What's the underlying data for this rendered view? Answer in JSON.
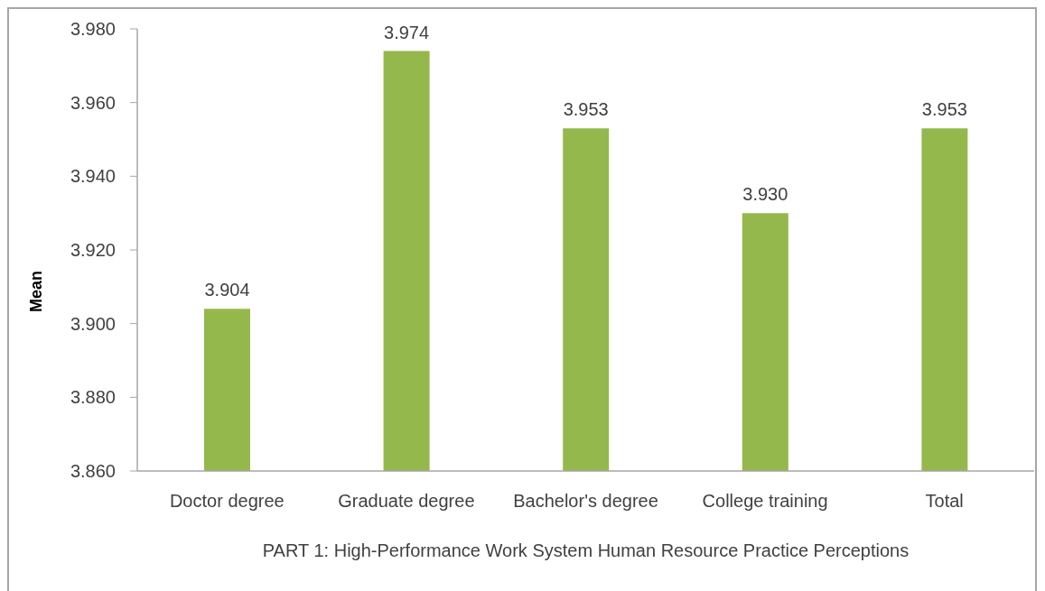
{
  "chart_data": {
    "type": "bar",
    "ylabel": "Mean",
    "xlabel": "PART 1: High-Performance Work System Human Resource Practice Perceptions",
    "categories": [
      "Doctor degree",
      "Graduate degree",
      "Bachelor's degree",
      "College training",
      "Total"
    ],
    "values": [
      3.904,
      3.974,
      3.953,
      3.93,
      3.953
    ],
    "value_labels": [
      "3.904",
      "3.974",
      "3.953",
      "3.930",
      "3.953"
    ],
    "color": "#95b84c",
    "ylim": [
      3.86,
      3.98
    ],
    "yticks": [
      {
        "value": 3.86,
        "label": "3.860"
      },
      {
        "value": 3.88,
        "label": "3.880"
      },
      {
        "value": 3.9,
        "label": "3.900"
      },
      {
        "value": 3.92,
        "label": "3.920"
      },
      {
        "value": 3.94,
        "label": "3.940"
      },
      {
        "value": 3.96,
        "label": "3.960"
      },
      {
        "value": 3.98,
        "label": "3.980"
      }
    ]
  }
}
